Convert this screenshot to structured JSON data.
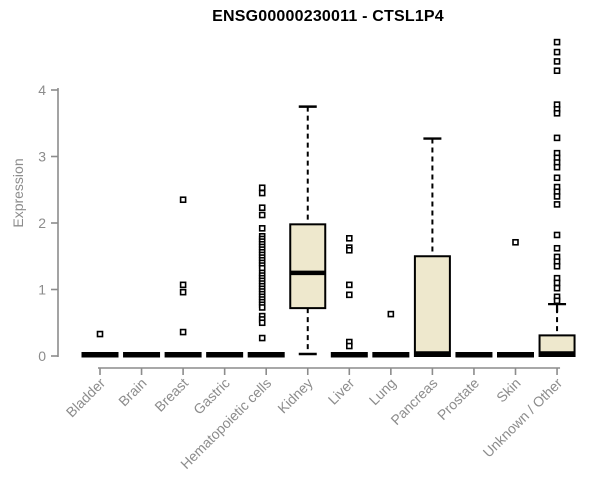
{
  "chart_data": {
    "type": "boxplot",
    "title": "ENSG00000230011 - CTSL1P4",
    "ylabel": "Expression",
    "xlabel": "",
    "ylim": [
      0,
      4.8
    ],
    "yticks": [
      "0",
      "1",
      "2",
      "3",
      "4"
    ],
    "grid": false,
    "legend": false,
    "colors": {
      "box_fill": "#EEE8CD",
      "box_stroke": "#000000",
      "median": "#000000",
      "axis": "#8C8C8C",
      "tick_label": "#8C8C8C",
      "title": "#000000",
      "outlier_stroke": "#000000",
      "background": "#ffffff"
    },
    "categories": [
      "Bladder",
      "Brain",
      "Breast",
      "Gastric",
      "Hematopoietic cells",
      "Kidney",
      "Liver",
      "Lung",
      "Pancreas",
      "Prostate",
      "Skin",
      "Unknown / Other"
    ],
    "boxes": [
      {
        "category": "Bladder",
        "collapsed": true,
        "q1": 0,
        "median": 0,
        "q3": 0,
        "outliers": [
          0.33
        ]
      },
      {
        "category": "Brain",
        "collapsed": true,
        "q1": 0,
        "median": 0,
        "q3": 0,
        "outliers": []
      },
      {
        "category": "Breast",
        "collapsed": true,
        "q1": 0,
        "median": 0,
        "q3": 0,
        "outliers": [
          2.35,
          1.07,
          0.96,
          0.36
        ]
      },
      {
        "category": "Gastric",
        "collapsed": true,
        "q1": 0,
        "median": 0,
        "q3": 0,
        "outliers": []
      },
      {
        "category": "Hematopoietic cells",
        "collapsed": true,
        "q1": 0,
        "median": 0,
        "q3": 0,
        "outlier_dx": -4,
        "outliers": [
          2.53,
          2.45,
          2.23,
          2.12,
          1.92,
          1.8,
          1.76,
          1.72,
          1.68,
          1.64,
          1.6,
          1.56,
          1.52,
          1.48,
          1.44,
          1.4,
          1.36,
          1.32,
          1.25,
          1.21,
          1.17,
          1.13,
          1.09,
          1.05,
          1.01,
          0.97,
          0.93,
          0.89,
          0.85,
          0.81,
          0.77,
          0.73,
          0.6,
          0.55,
          0.5,
          0.27
        ]
      },
      {
        "category": "Kidney",
        "collapsed": false,
        "q1": 0.72,
        "median": 1.25,
        "q3": 1.98,
        "whisker_low": 0.03,
        "whisker_high": 3.75,
        "outliers": []
      },
      {
        "category": "Liver",
        "collapsed": true,
        "q1": 0,
        "median": 0,
        "q3": 0,
        "outliers": [
          1.77,
          1.63,
          1.59,
          1.07,
          0.92,
          0.21,
          0.15
        ]
      },
      {
        "category": "Lung",
        "collapsed": true,
        "q1": 0,
        "median": 0,
        "q3": 0,
        "outliers": [
          0.63
        ]
      },
      {
        "category": "Pancreas",
        "collapsed": false,
        "q1": 0,
        "median": 0,
        "q3": 1.5,
        "whisker_low": null,
        "whisker_high": 3.27,
        "outliers": []
      },
      {
        "category": "Prostate",
        "collapsed": true,
        "q1": 0,
        "median": 0,
        "q3": 0,
        "outliers": []
      },
      {
        "category": "Skin",
        "collapsed": true,
        "q1": 0,
        "median": 0,
        "q3": 0,
        "outliers": [
          1.71
        ]
      },
      {
        "category": "Unknown / Other",
        "collapsed": false,
        "q1": 0,
        "median": 0,
        "q3": 0.31,
        "whisker_low": null,
        "whisker_high": 0.72,
        "whisker_high_cap": false,
        "mean": 0.78,
        "outliers": [
          4.72,
          4.57,
          4.43,
          4.29,
          3.78,
          3.71,
          3.65,
          3.28,
          3.05,
          2.98,
          2.91,
          2.84,
          2.68,
          2.54,
          2.47,
          2.4,
          2.28,
          1.82,
          1.62,
          1.49,
          1.42,
          1.35,
          1.17,
          1.1,
          1.02,
          0.89,
          0.83
        ]
      }
    ]
  }
}
